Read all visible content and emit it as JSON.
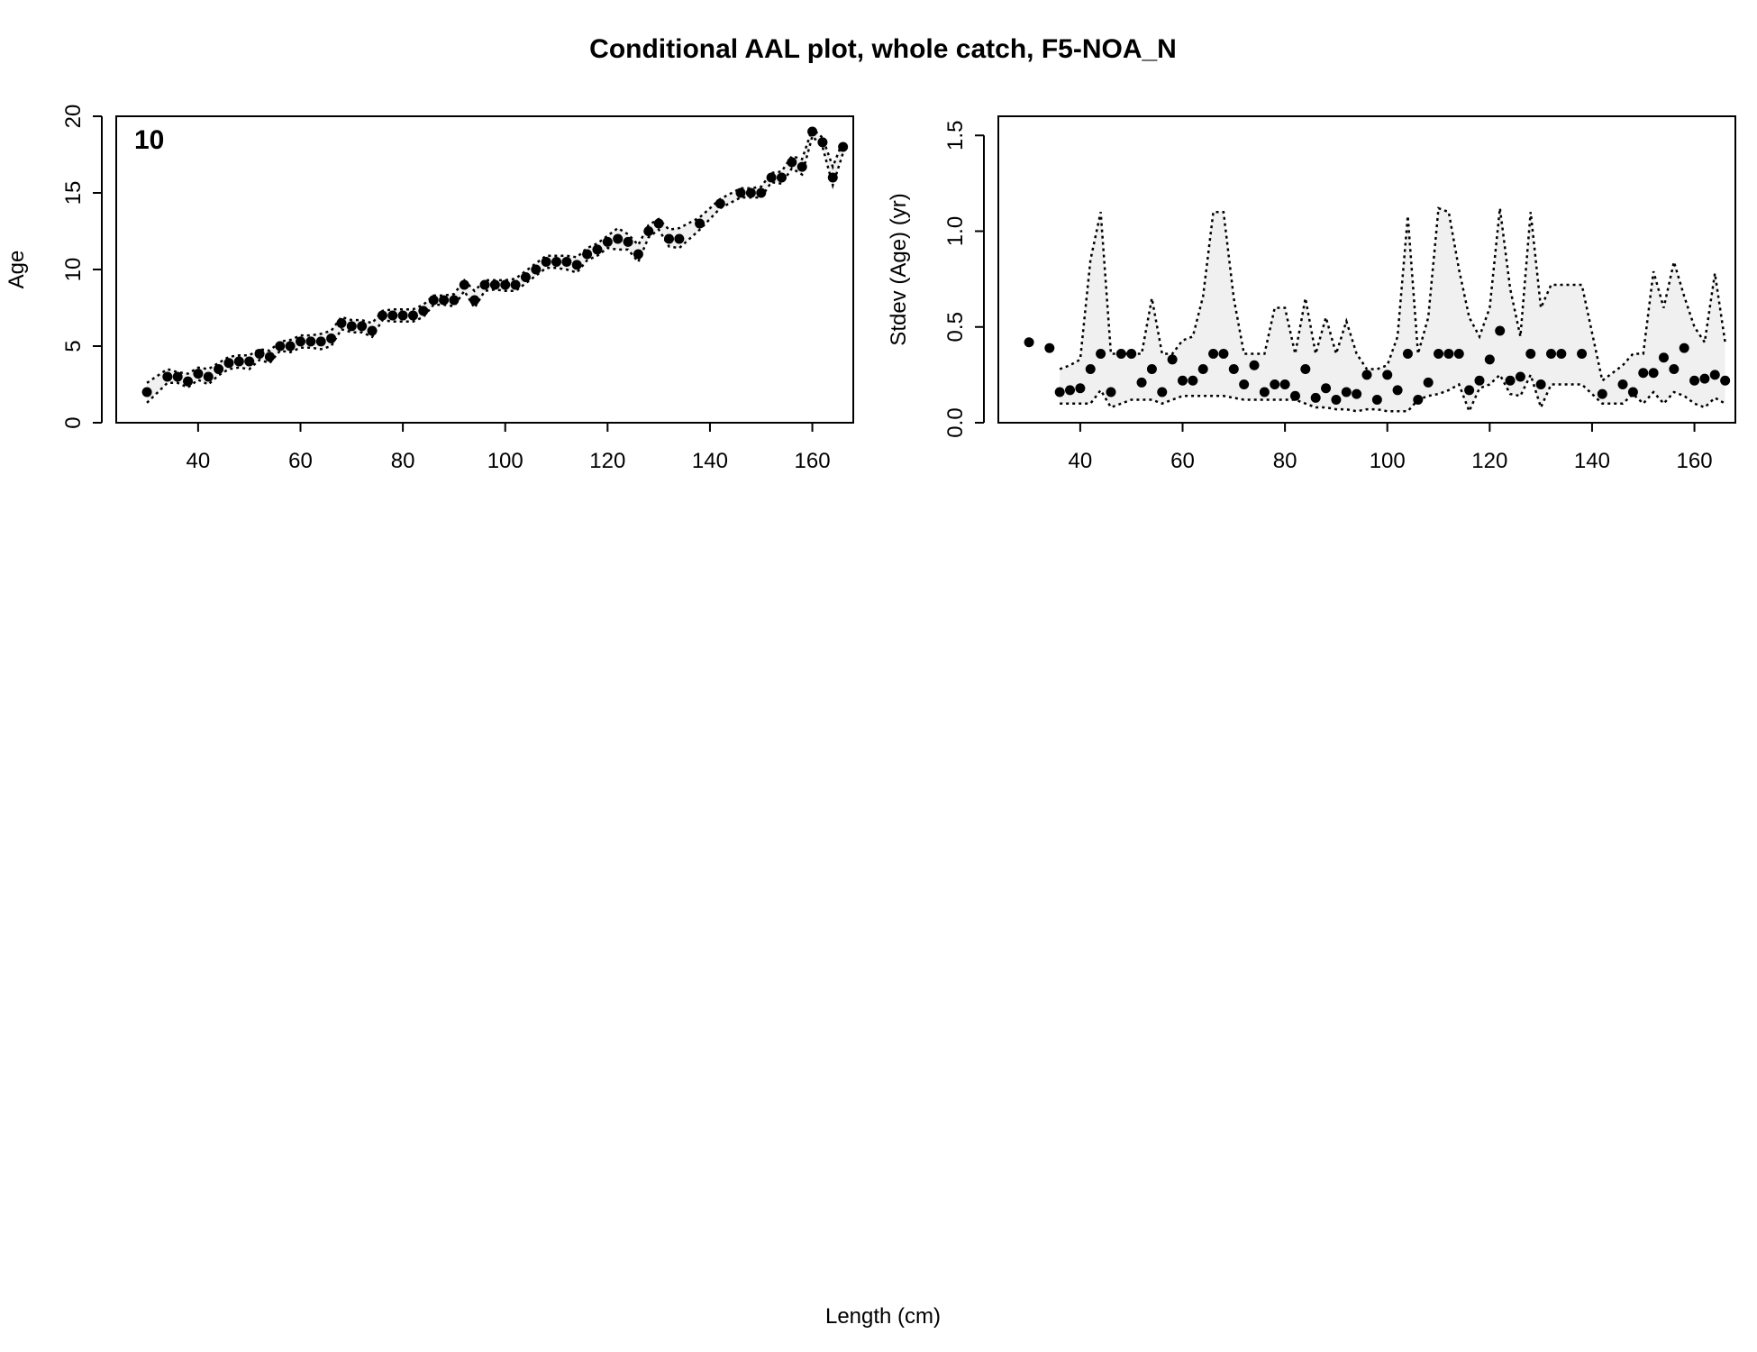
{
  "figure": {
    "title": "Conditional AAL plot, whole catch, F5-NOA_N",
    "xlabel": "Length (cm)"
  },
  "colors": {
    "band_fill": "#f0f0f0",
    "line": "#000000",
    "point": "#000000"
  },
  "chart_data": [
    {
      "type": "scatter",
      "panel": "left",
      "panel_label": "10",
      "xlabel": "",
      "ylabel": "Age",
      "xlim": [
        24,
        168
      ],
      "ylim": [
        0,
        20
      ],
      "xticks": [
        40,
        60,
        80,
        100,
        120,
        140,
        160
      ],
      "yticks": [
        0,
        5,
        10,
        15,
        20
      ],
      "grid": false,
      "series": [
        {
          "role": "observed_mean",
          "x": [
            30,
            34,
            36,
            38,
            40,
            42,
            44,
            46,
            48,
            50,
            52,
            54,
            56,
            58,
            60,
            62,
            64,
            66,
            68,
            70,
            72,
            74,
            76,
            78,
            80,
            82,
            84,
            86,
            88,
            90,
            92,
            94,
            96,
            98,
            100,
            102,
            104,
            106,
            108,
            110,
            112,
            114,
            116,
            118,
            120,
            122,
            124,
            126,
            128,
            130,
            132,
            134,
            138,
            142,
            146,
            148,
            150,
            152,
            154,
            156,
            158,
            160,
            162,
            164,
            166
          ],
          "y": [
            2,
            3,
            3,
            2.7,
            3.2,
            3,
            3.5,
            3.9,
            4,
            4,
            4.5,
            4.3,
            5,
            5,
            5.3,
            5.3,
            5.3,
            5.5,
            6.5,
            6.3,
            6.3,
            6,
            7,
            7,
            7,
            7,
            7.3,
            8,
            8,
            8,
            9,
            8,
            9,
            9,
            9,
            9,
            9.5,
            10,
            10.5,
            10.5,
            10.5,
            10.3,
            11,
            11.3,
            11.8,
            12,
            11.8,
            11,
            12.5,
            13,
            12,
            12,
            13,
            14.3,
            15,
            15,
            15,
            16,
            16,
            17,
            16.7,
            19,
            18.3,
            16,
            18
          ]
        },
        {
          "role": "expected_upper",
          "x": [
            30,
            34,
            36,
            38,
            40,
            42,
            44,
            46,
            48,
            50,
            52,
            54,
            56,
            58,
            60,
            62,
            64,
            66,
            68,
            70,
            72,
            74,
            76,
            78,
            80,
            82,
            84,
            86,
            88,
            90,
            92,
            94,
            96,
            98,
            100,
            102,
            104,
            106,
            108,
            110,
            112,
            114,
            116,
            118,
            120,
            122,
            124,
            126,
            128,
            130,
            132,
            134,
            138,
            142,
            146,
            148,
            150,
            152,
            154,
            156,
            158,
            160,
            162,
            164,
            166
          ],
          "y": [
            2.6,
            3.5,
            3.3,
            3.2,
            3.6,
            3.5,
            3.9,
            4.3,
            4.4,
            4.4,
            4.8,
            4.7,
            5.3,
            5.4,
            5.7,
            5.7,
            5.8,
            6,
            6.9,
            6.7,
            6.7,
            6.5,
            7.3,
            7.4,
            7.4,
            7.4,
            7.7,
            8.3,
            8.3,
            8.4,
            9.3,
            8.6,
            9.3,
            9.3,
            9.3,
            9.4,
            9.9,
            10.4,
            10.9,
            10.9,
            10.9,
            10.8,
            11.4,
            11.7,
            12.2,
            12.7,
            12.3,
            11.6,
            12.9,
            13.3,
            12.6,
            12.7,
            13.4,
            14.6,
            15.3,
            15.3,
            15.4,
            16.3,
            16.4,
            17.4,
            17.2,
            19.2,
            18.6,
            16.7,
            18.4
          ]
        },
        {
          "role": "expected_lower",
          "x": [
            30,
            34,
            36,
            38,
            40,
            42,
            44,
            46,
            48,
            50,
            52,
            54,
            56,
            58,
            60,
            62,
            64,
            66,
            68,
            70,
            72,
            74,
            76,
            78,
            80,
            82,
            84,
            86,
            88,
            90,
            92,
            94,
            96,
            98,
            100,
            102,
            104,
            106,
            108,
            110,
            112,
            114,
            116,
            118,
            120,
            122,
            124,
            126,
            128,
            130,
            132,
            134,
            138,
            142,
            146,
            148,
            150,
            152,
            154,
            156,
            158,
            160,
            162,
            164,
            166
          ],
          "y": [
            1.3,
            2.6,
            2.6,
            2.3,
            2.8,
            2.5,
            3.1,
            3.5,
            3.6,
            3.5,
            4.1,
            3.9,
            4.7,
            4.6,
            4.9,
            4.9,
            4.8,
            5,
            6.1,
            5.9,
            5.9,
            5.6,
            6.7,
            6.6,
            6.6,
            6.6,
            6.9,
            7.7,
            7.7,
            7.6,
            8.6,
            7.5,
            8.6,
            8.7,
            8.6,
            8.6,
            9.1,
            9.6,
            10.1,
            10.1,
            10,
            9.8,
            10.6,
            10.9,
            11.4,
            11.3,
            11.3,
            10.5,
            12.1,
            12.6,
            11.5,
            11.4,
            12.6,
            14,
            14.7,
            14.7,
            14.7,
            15.7,
            15.6,
            16.6,
            16.2,
            18.7,
            18,
            15.5,
            17.6
          ]
        }
      ]
    },
    {
      "type": "scatter",
      "panel": "right",
      "xlabel": "",
      "ylabel": "Stdev (Age) (yr)",
      "xlim": [
        24,
        168
      ],
      "ylim": [
        0,
        1.6
      ],
      "xticks": [
        40,
        60,
        80,
        100,
        120,
        140,
        160
      ],
      "yticks": [
        0,
        0.5,
        1,
        1.5
      ],
      "ytick_labels": [
        "0.0",
        "0.5",
        "1.0",
        "1.5"
      ],
      "grid": false,
      "series": [
        {
          "role": "observed_sd",
          "x": [
            30,
            34,
            36,
            38,
            40,
            42,
            44,
            46,
            48,
            50,
            52,
            54,
            56,
            58,
            60,
            62,
            64,
            66,
            68,
            70,
            72,
            74,
            76,
            78,
            80,
            82,
            84,
            86,
            88,
            90,
            92,
            94,
            96,
            98,
            100,
            102,
            104,
            106,
            108,
            110,
            112,
            114,
            116,
            118,
            120,
            122,
            124,
            126,
            128,
            130,
            132,
            134,
            138,
            142,
            146,
            148,
            150,
            152,
            154,
            156,
            158,
            160,
            162,
            164,
            166
          ],
          "y": [
            0.42,
            0.39,
            0.16,
            0.17,
            0.18,
            0.28,
            0.36,
            0.16,
            0.36,
            0.36,
            0.21,
            0.28,
            0.16,
            0.33,
            0.22,
            0.22,
            0.28,
            0.36,
            0.36,
            0.28,
            0.2,
            0.3,
            0.16,
            0.2,
            0.2,
            0.14,
            0.28,
            0.13,
            0.18,
            0.12,
            0.16,
            0.15,
            0.25,
            0.12,
            0.25,
            0.17,
            0.36,
            0.12,
            0.21,
            0.36,
            0.36,
            0.36,
            0.17,
            0.22,
            0.33,
            0.48,
            0.22,
            0.24,
            0.36,
            0.2,
            0.36,
            0.36,
            0.36,
            0.15,
            0.2,
            0.16,
            0.26,
            0.26,
            0.34,
            0.28,
            0.39,
            0.22,
            0.23,
            0.25,
            0.22
          ]
        },
        {
          "role": "expected_upper",
          "x": [
            36,
            38,
            40,
            42,
            44,
            46,
            48,
            50,
            52,
            54,
            56,
            58,
            60,
            62,
            64,
            66,
            68,
            70,
            72,
            74,
            76,
            78,
            80,
            82,
            84,
            86,
            88,
            90,
            92,
            94,
            96,
            98,
            100,
            102,
            104,
            106,
            108,
            110,
            112,
            114,
            116,
            118,
            120,
            122,
            124,
            126,
            128,
            130,
            132,
            134,
            138,
            142,
            146,
            148,
            150,
            152,
            154,
            156,
            158,
            160,
            162,
            164,
            166
          ],
          "y": [
            0.28,
            0.3,
            0.33,
            0.85,
            1.1,
            0.36,
            0.36,
            0.36,
            0.36,
            0.65,
            0.36,
            0.36,
            0.43,
            0.45,
            0.66,
            1.1,
            1.1,
            0.65,
            0.36,
            0.36,
            0.36,
            0.6,
            0.6,
            0.36,
            0.65,
            0.36,
            0.55,
            0.36,
            0.53,
            0.36,
            0.28,
            0.28,
            0.3,
            0.45,
            1.08,
            0.36,
            0.55,
            1.12,
            1.1,
            0.8,
            0.55,
            0.45,
            0.6,
            1.12,
            0.7,
            0.45,
            1.1,
            0.6,
            0.72,
            0.72,
            0.72,
            0.22,
            0.3,
            0.36,
            0.36,
            0.79,
            0.6,
            0.84,
            0.66,
            0.5,
            0.42,
            0.78,
            0.42
          ]
        },
        {
          "role": "expected_lower",
          "x": [
            36,
            38,
            40,
            42,
            44,
            46,
            48,
            50,
            52,
            54,
            56,
            58,
            60,
            62,
            64,
            66,
            68,
            70,
            72,
            74,
            76,
            78,
            80,
            82,
            84,
            86,
            88,
            90,
            92,
            94,
            96,
            98,
            100,
            102,
            104,
            106,
            108,
            110,
            112,
            114,
            116,
            118,
            120,
            122,
            124,
            126,
            128,
            130,
            132,
            134,
            138,
            142,
            146,
            148,
            150,
            152,
            154,
            156,
            158,
            160,
            162,
            164,
            166
          ],
          "y": [
            0.1,
            0.1,
            0.1,
            0.1,
            0.17,
            0.08,
            0.1,
            0.12,
            0.12,
            0.12,
            0.1,
            0.12,
            0.14,
            0.14,
            0.14,
            0.14,
            0.14,
            0.13,
            0.12,
            0.12,
            0.12,
            0.12,
            0.12,
            0.12,
            0.1,
            0.08,
            0.08,
            0.07,
            0.07,
            0.06,
            0.07,
            0.07,
            0.06,
            0.06,
            0.06,
            0.12,
            0.14,
            0.15,
            0.17,
            0.2,
            0.06,
            0.18,
            0.2,
            0.25,
            0.15,
            0.14,
            0.25,
            0.08,
            0.2,
            0.2,
            0.2,
            0.1,
            0.1,
            0.15,
            0.1,
            0.16,
            0.1,
            0.16,
            0.14,
            0.1,
            0.08,
            0.13,
            0.1
          ]
        }
      ]
    }
  ]
}
